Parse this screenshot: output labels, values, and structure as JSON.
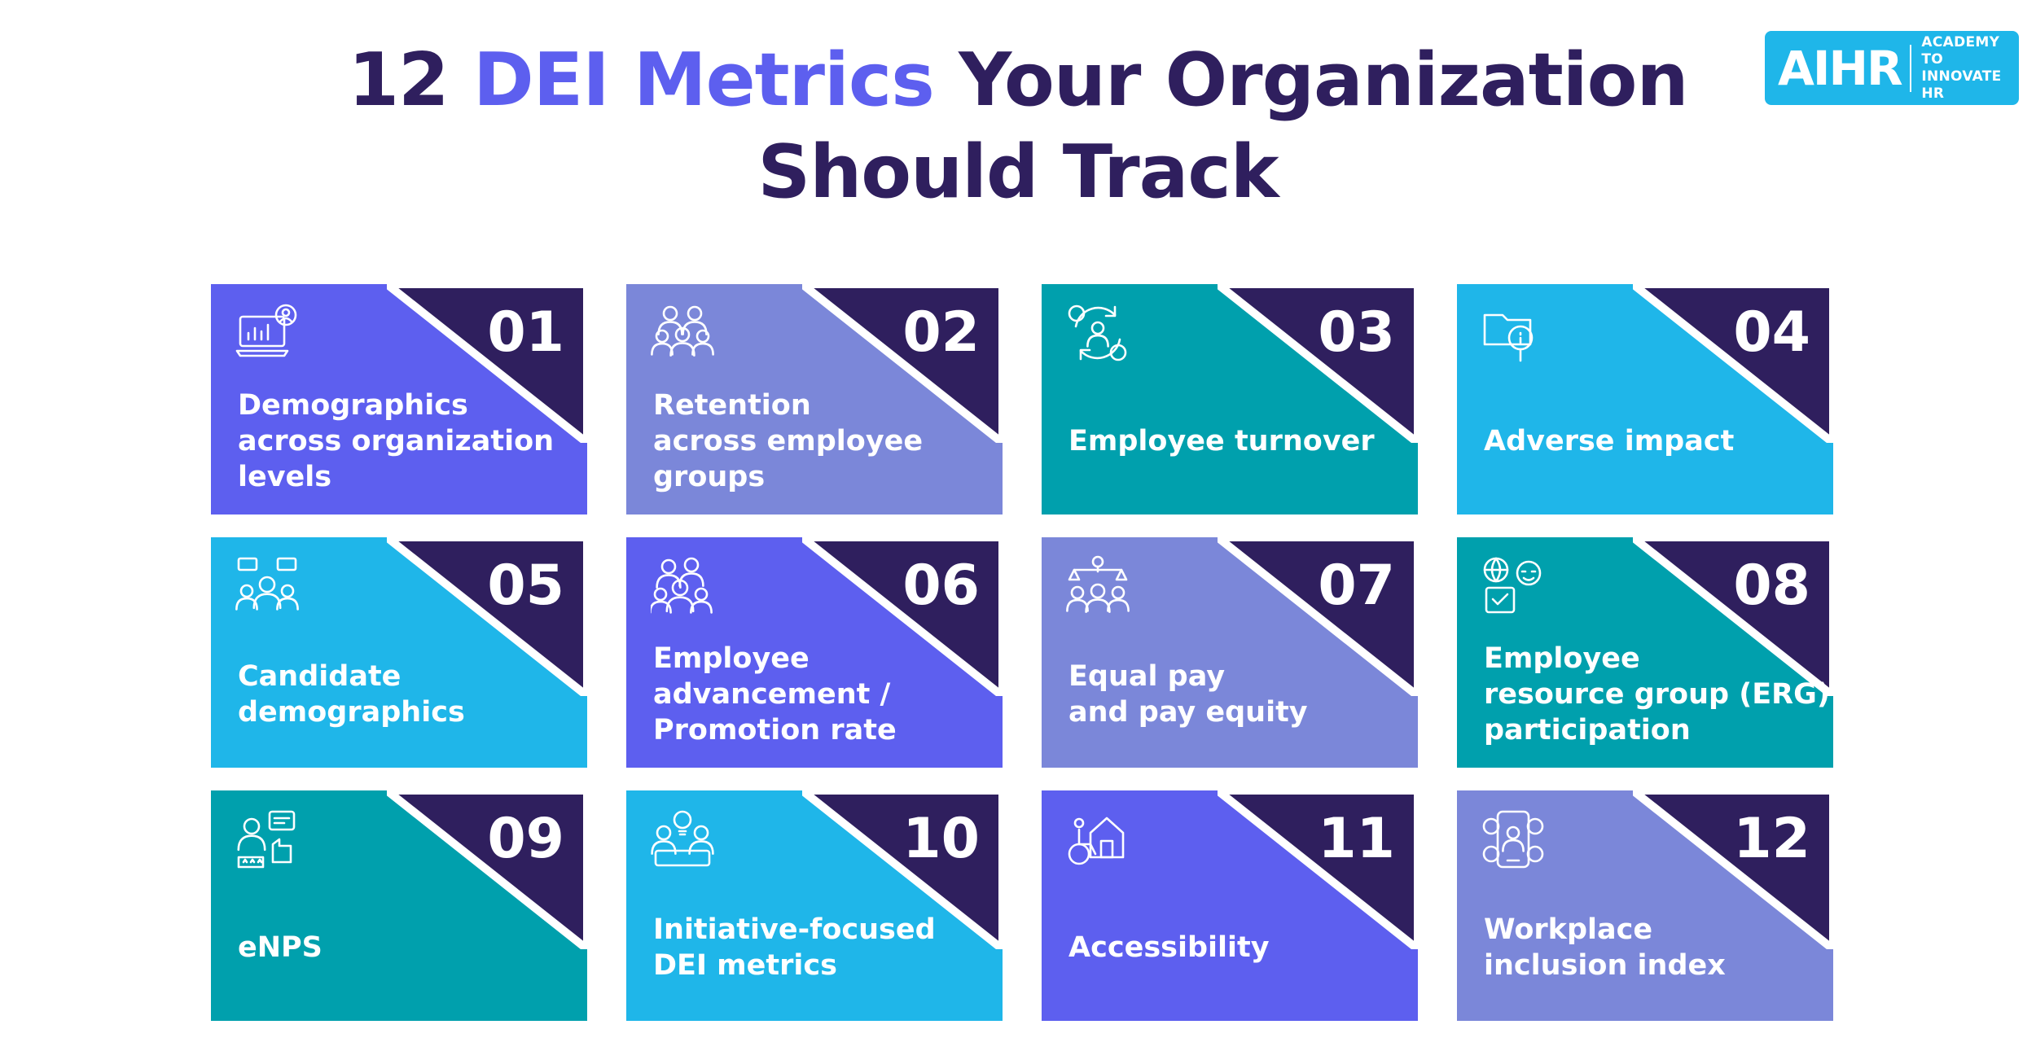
{
  "title": {
    "line1_pre": "12 ",
    "line1_highlight": "DEI Metrics",
    "line1_post": " Your Organization",
    "line2": "Should Track"
  },
  "colors": {
    "title": "#2f1f5e",
    "highlight": "#5d5fef",
    "corner": "#2f1f5e",
    "logo_bg": "#1fb6e9"
  },
  "logo": {
    "mark": "AIHR",
    "tagline_1": "ACADEMY TO",
    "tagline_2": "INNOVATE HR"
  },
  "cards": [
    {
      "number": "01",
      "lines": [
        "Demographics",
        "across organization",
        "levels"
      ],
      "color": "#5d5fef",
      "icon": "laptop-chart-user-icon"
    },
    {
      "number": "02",
      "lines": [
        "Retention",
        "across employee",
        "groups"
      ],
      "color": "#7b87d9",
      "icon": "employee-group-icon"
    },
    {
      "number": "03",
      "lines": [
        "Employee turnover"
      ],
      "color": "#00a0ad",
      "icon": "people-rotation-icon"
    },
    {
      "number": "04",
      "lines": [
        "Adverse impact"
      ],
      "color": "#1fb6e9",
      "icon": "folder-search-icon"
    },
    {
      "number": "05",
      "lines": [
        "Candidate",
        "demographics"
      ],
      "color": "#1fb6e9",
      "icon": "candidates-chat-icon"
    },
    {
      "number": "06",
      "lines": [
        "Employee",
        "advancement /",
        "Promotion rate"
      ],
      "color": "#5d5fef",
      "icon": "team-promotion-icon"
    },
    {
      "number": "07",
      "lines": [
        "Equal pay",
        "and pay equity"
      ],
      "color": "#7b87d9",
      "icon": "balance-scale-people-icon"
    },
    {
      "number": "08",
      "lines": [
        "Employee",
        "resource group (ERG)",
        "participation"
      ],
      "color": "#00a0ad",
      "icon": "globe-group-icon"
    },
    {
      "number": "09",
      "lines": [
        "eNPS"
      ],
      "color": "#00a0ad",
      "icon": "rating-feedback-icon"
    },
    {
      "number": "10",
      "lines": [
        "Initiative-focused",
        "DEI metrics"
      ],
      "color": "#1fb6e9",
      "icon": "idea-people-icon"
    },
    {
      "number": "11",
      "lines": [
        "Accessibility"
      ],
      "color": "#5d5fef",
      "icon": "wheelchair-building-icon"
    },
    {
      "number": "12",
      "lines": [
        "Workplace",
        "inclusion index"
      ],
      "color": "#7b87d9",
      "icon": "phone-inclusion-icon"
    }
  ]
}
